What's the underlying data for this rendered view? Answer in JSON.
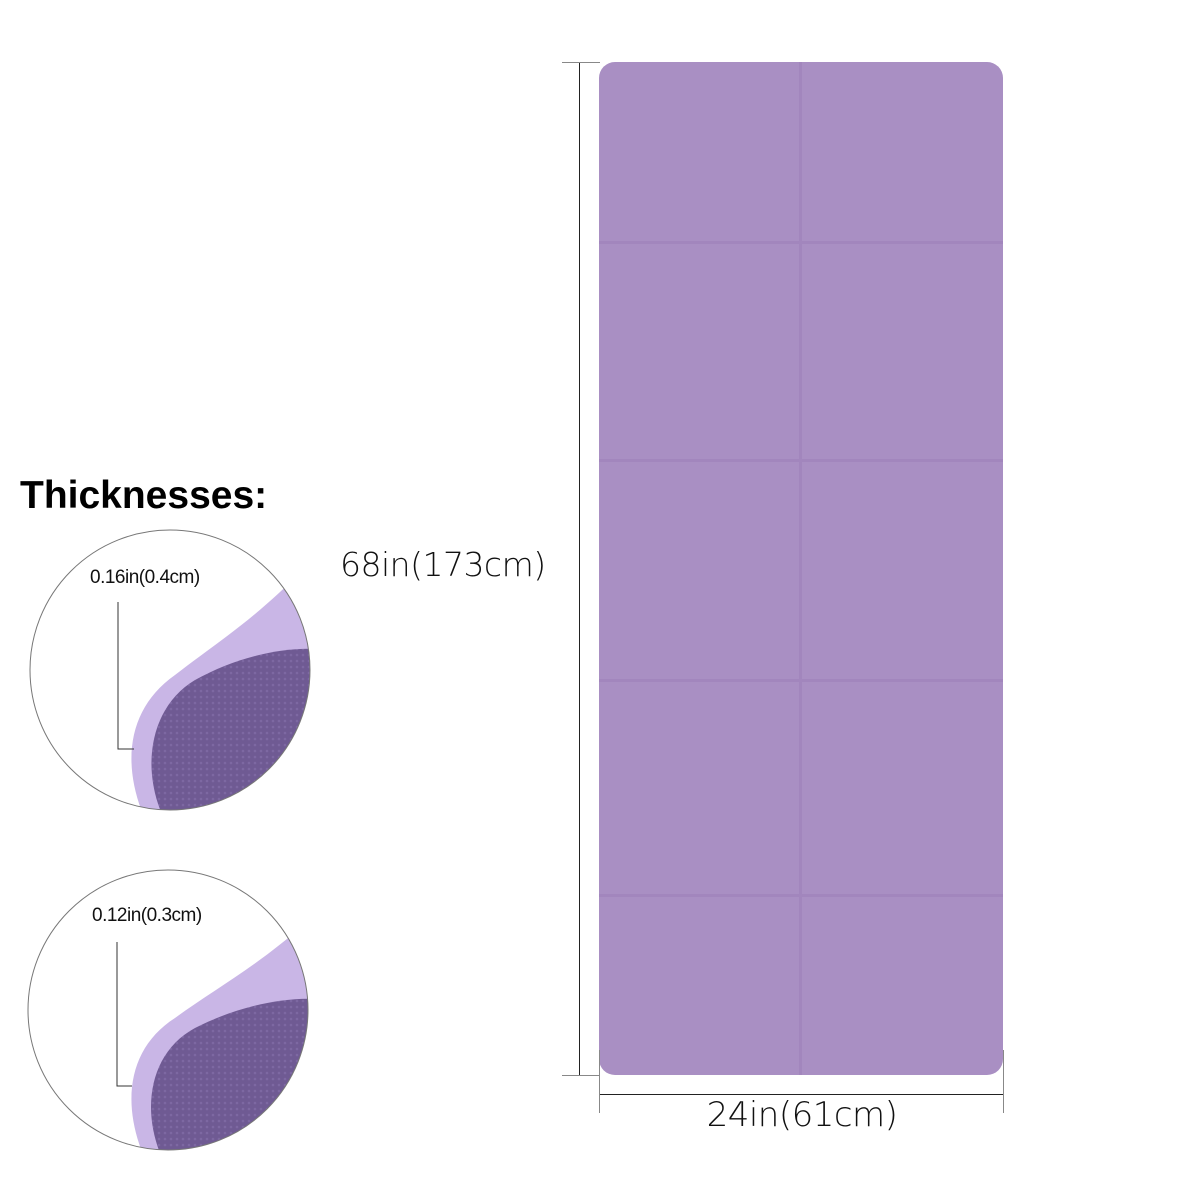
{
  "title": "Thicknesses:",
  "dimensions": {
    "length": "68in(173cm)",
    "width": "24in(61cm)"
  },
  "thickness_options": [
    {
      "label": "0.16in(0.4cm)"
    },
    {
      "label": "0.12in(0.3cm)"
    }
  ],
  "colors": {
    "mat": "#a98fc3",
    "mat_top_light": "#c9b6e6",
    "mat_underside": "#6f5a93"
  }
}
